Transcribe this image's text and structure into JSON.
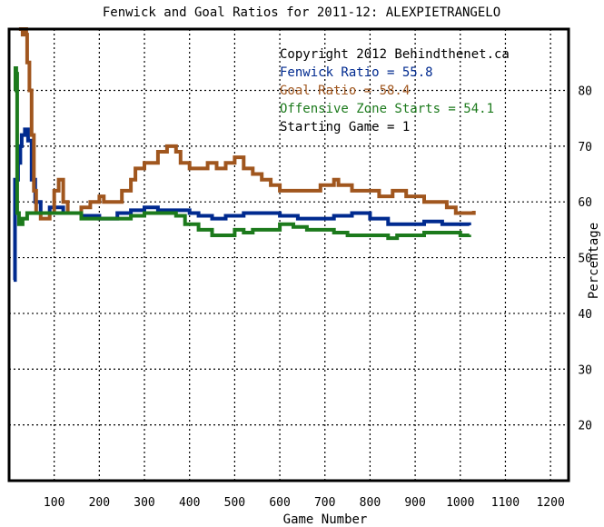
{
  "chart_data": {
    "type": "line",
    "title": "Fenwick and Goal Ratios for 2011-12: ALEXPIETRANGELO",
    "xlabel": "Game Number",
    "ylabel": "Percentage",
    "xlim": [
      0,
      1240
    ],
    "ylim": [
      10,
      91
    ],
    "x_ticks": [
      100,
      200,
      300,
      400,
      500,
      600,
      700,
      800,
      900,
      1000,
      1100,
      1200
    ],
    "y_ticks": [
      20,
      30,
      40,
      50,
      60,
      70,
      80
    ],
    "grid": true,
    "legend_position": "top-right",
    "annotations": [
      {
        "text": "Copyright 2012 Behindthenet.ca",
        "color": "#000000"
      },
      {
        "text": "Fenwick Ratio = 55.8",
        "color": "#002a8f"
      },
      {
        "text": "Goal Ratio = 58.4",
        "color": "#a0561e"
      },
      {
        "text": "Offensive Zone Starts = 54.1",
        "color": "#1c7a1c"
      },
      {
        "text": "Starting Game = 1",
        "color": "#000000"
      }
    ],
    "series": [
      {
        "name": "Fenwick Ratio",
        "color": "#002a8f",
        "points": [
          [
            10,
            46
          ],
          [
            13,
            64
          ],
          [
            20,
            67
          ],
          [
            25,
            70
          ],
          [
            28,
            72
          ],
          [
            35,
            73
          ],
          [
            42,
            71
          ],
          [
            50,
            64
          ],
          [
            58,
            60
          ],
          [
            70,
            58
          ],
          [
            90,
            59
          ],
          [
            120,
            58
          ],
          [
            160,
            57.5
          ],
          [
            200,
            57
          ],
          [
            240,
            58
          ],
          [
            270,
            58.5
          ],
          [
            300,
            59
          ],
          [
            330,
            58.5
          ],
          [
            360,
            58.5
          ],
          [
            400,
            58
          ],
          [
            420,
            57.5
          ],
          [
            450,
            57
          ],
          [
            480,
            57.5
          ],
          [
            520,
            58
          ],
          [
            560,
            58
          ],
          [
            600,
            57.5
          ],
          [
            640,
            57
          ],
          [
            680,
            57
          ],
          [
            720,
            57.5
          ],
          [
            760,
            58
          ],
          [
            800,
            57
          ],
          [
            840,
            56
          ],
          [
            880,
            56
          ],
          [
            920,
            56.5
          ],
          [
            960,
            56
          ],
          [
            1000,
            56
          ],
          [
            1020,
            55.8
          ]
        ]
      },
      {
        "name": "Goal Ratio",
        "color": "#a0561e",
        "points": [
          [
            22,
            95
          ],
          [
            26,
            92
          ],
          [
            30,
            90
          ],
          [
            34,
            92
          ],
          [
            38,
            90
          ],
          [
            40,
            85
          ],
          [
            45,
            80
          ],
          [
            50,
            72
          ],
          [
            55,
            62
          ],
          [
            60,
            58
          ],
          [
            70,
            57
          ],
          [
            80,
            57
          ],
          [
            90,
            58
          ],
          [
            100,
            62
          ],
          [
            110,
            64
          ],
          [
            120,
            60
          ],
          [
            130,
            58
          ],
          [
            140,
            58
          ],
          [
            160,
            59
          ],
          [
            180,
            60
          ],
          [
            200,
            61
          ],
          [
            210,
            60
          ],
          [
            230,
            60
          ],
          [
            250,
            62
          ],
          [
            270,
            64
          ],
          [
            280,
            66
          ],
          [
            300,
            67
          ],
          [
            330,
            69
          ],
          [
            350,
            70
          ],
          [
            370,
            69
          ],
          [
            380,
            67
          ],
          [
            400,
            66
          ],
          [
            420,
            66
          ],
          [
            440,
            67
          ],
          [
            460,
            66
          ],
          [
            480,
            67
          ],
          [
            500,
            68
          ],
          [
            520,
            66
          ],
          [
            540,
            65
          ],
          [
            560,
            64
          ],
          [
            580,
            63
          ],
          [
            600,
            62
          ],
          [
            630,
            62
          ],
          [
            660,
            62
          ],
          [
            690,
            63
          ],
          [
            720,
            64
          ],
          [
            730,
            63
          ],
          [
            760,
            62
          ],
          [
            790,
            62
          ],
          [
            820,
            61
          ],
          [
            850,
            62
          ],
          [
            880,
            61
          ],
          [
            920,
            60
          ],
          [
            950,
            60
          ],
          [
            970,
            59
          ],
          [
            990,
            58
          ],
          [
            1010,
            58
          ],
          [
            1030,
            58.4
          ]
        ]
      },
      {
        "name": "Offensive Zone Starts",
        "color": "#1c7a1c",
        "points": [
          [
            12,
            80
          ],
          [
            14,
            84
          ],
          [
            16,
            83
          ],
          [
            18,
            58
          ],
          [
            22,
            56
          ],
          [
            30,
            57
          ],
          [
            40,
            58
          ],
          [
            60,
            58
          ],
          [
            90,
            58
          ],
          [
            120,
            58
          ],
          [
            160,
            57
          ],
          [
            200,
            57
          ],
          [
            240,
            57
          ],
          [
            270,
            57.5
          ],
          [
            300,
            58
          ],
          [
            340,
            58
          ],
          [
            370,
            57.5
          ],
          [
            390,
            56
          ],
          [
            420,
            55
          ],
          [
            450,
            54
          ],
          [
            480,
            54
          ],
          [
            500,
            55
          ],
          [
            520,
            54.5
          ],
          [
            540,
            55
          ],
          [
            570,
            55
          ],
          [
            600,
            56
          ],
          [
            630,
            55.5
          ],
          [
            660,
            55
          ],
          [
            690,
            55
          ],
          [
            720,
            54.5
          ],
          [
            750,
            54
          ],
          [
            780,
            54
          ],
          [
            800,
            54
          ],
          [
            820,
            54
          ],
          [
            840,
            53.5
          ],
          [
            860,
            54
          ],
          [
            880,
            54
          ],
          [
            900,
            54
          ],
          [
            920,
            54.5
          ],
          [
            950,
            54.5
          ],
          [
            980,
            54.5
          ],
          [
            1000,
            54
          ],
          [
            1020,
            54.1
          ]
        ]
      }
    ]
  }
}
